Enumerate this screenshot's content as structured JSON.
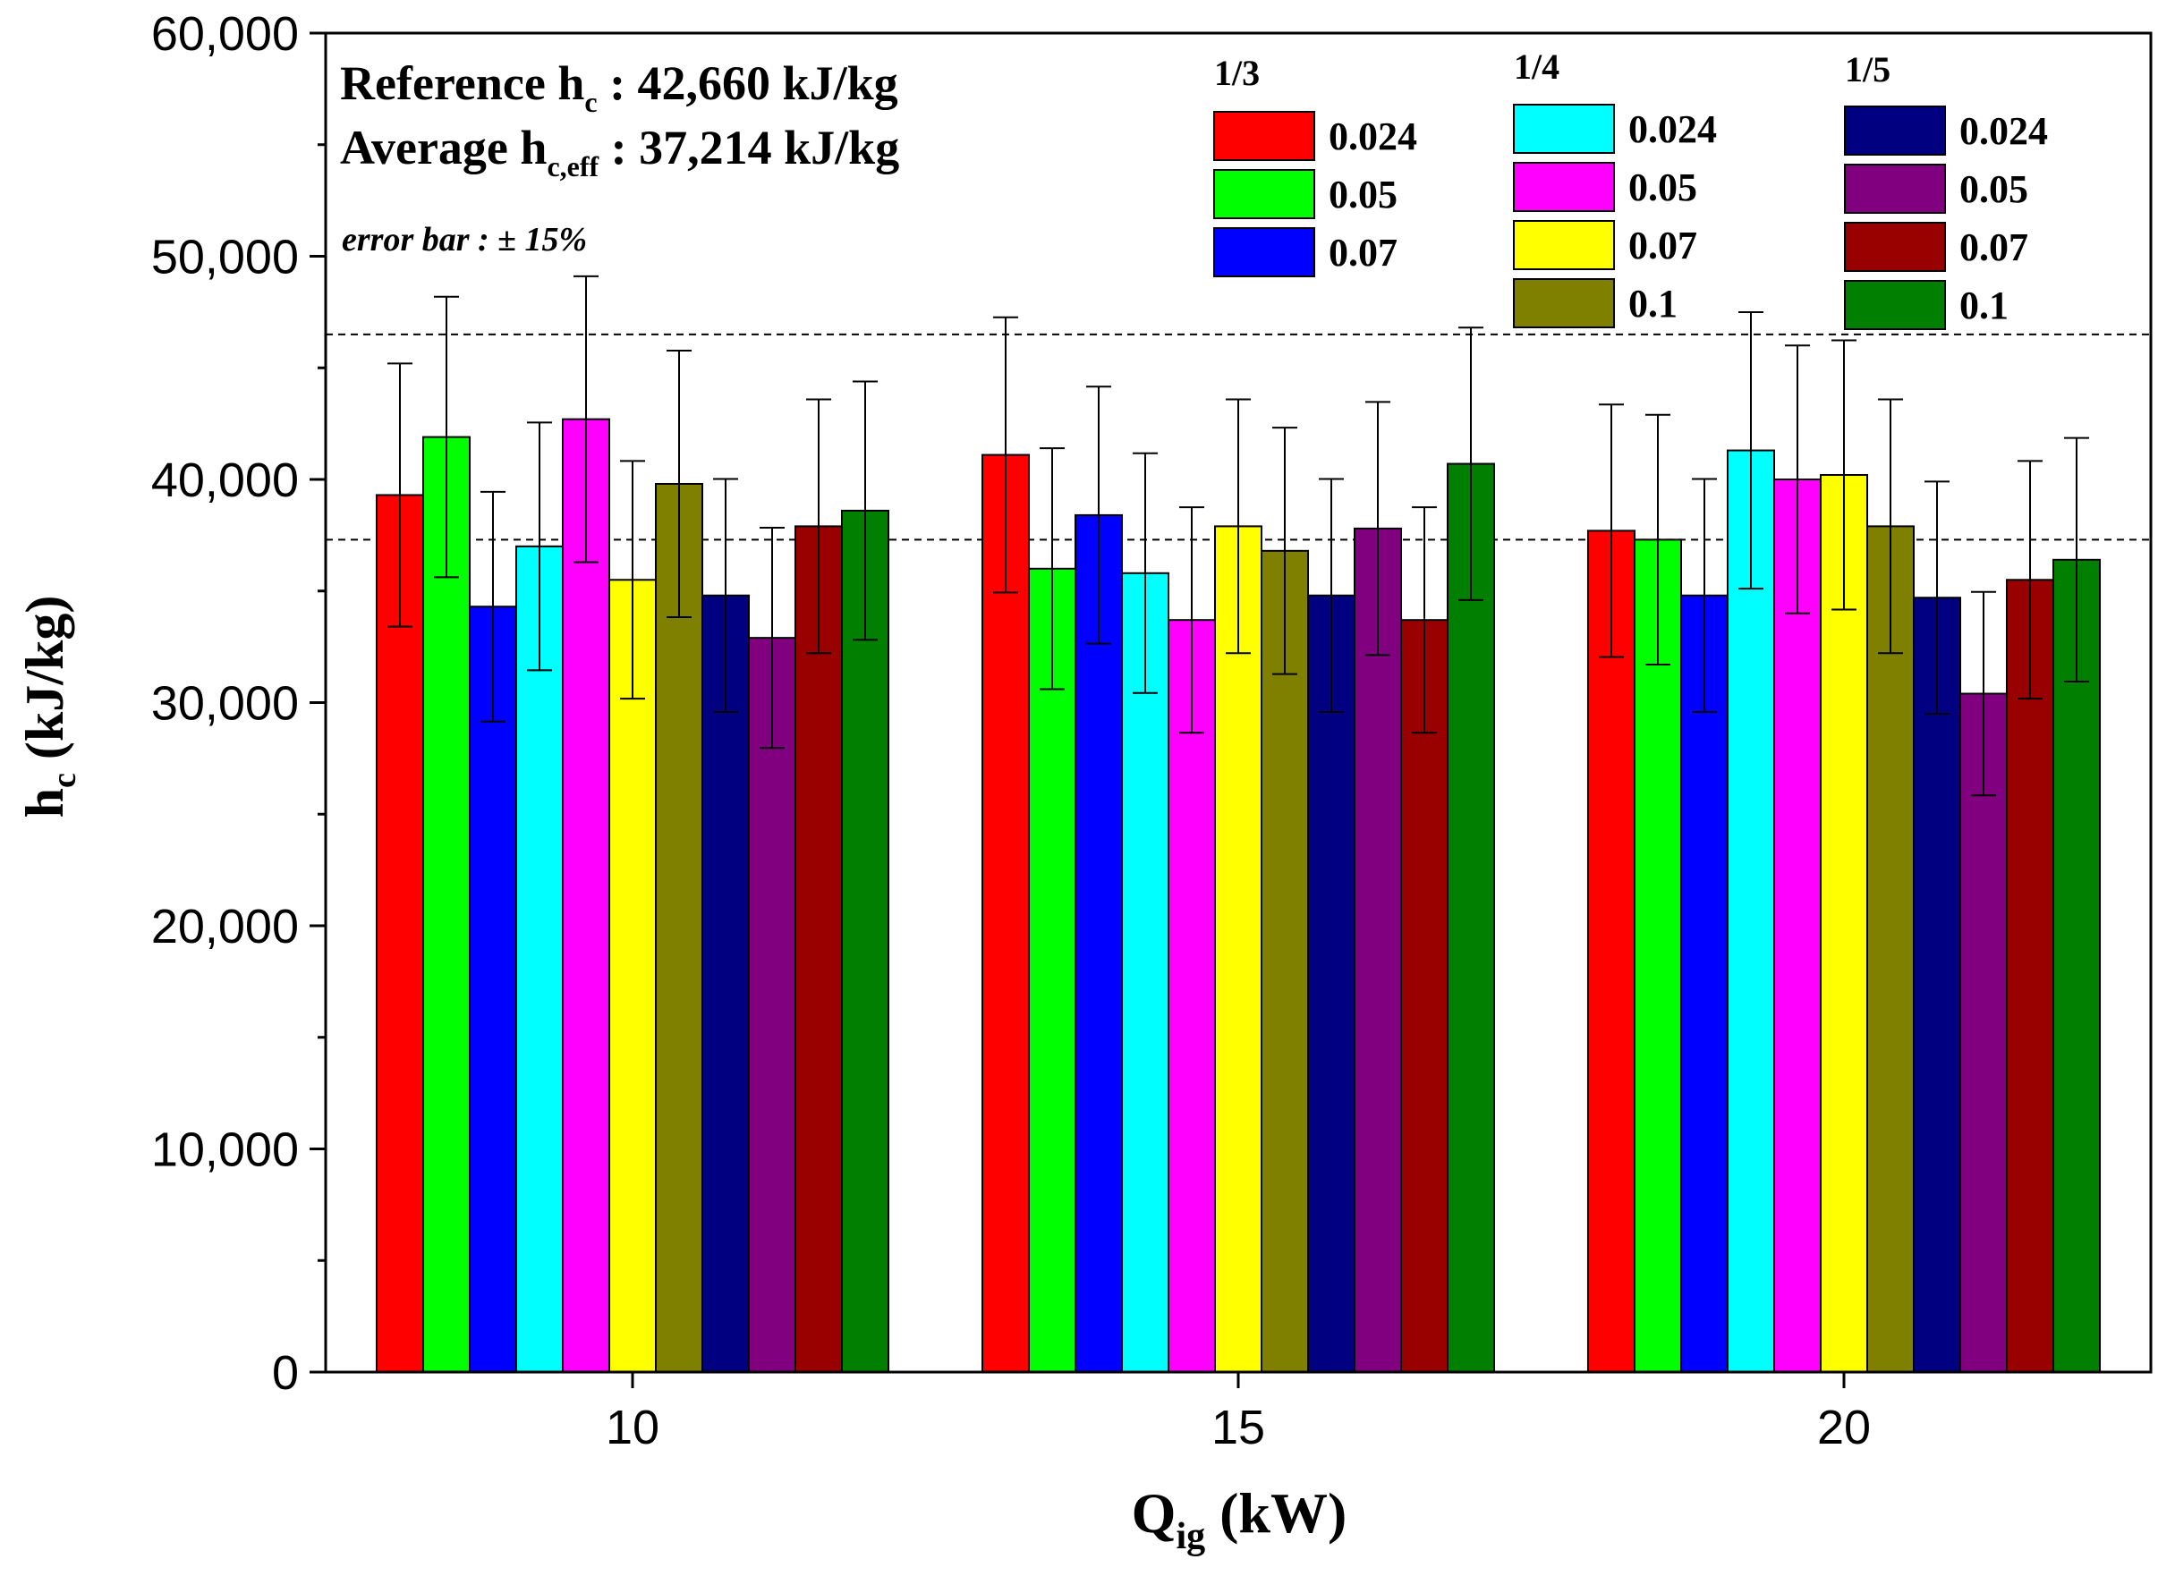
{
  "chart_data": {
    "type": "bar",
    "categories": [
      "10",
      "15",
      "20"
    ],
    "xlabel": {
      "main": "Q",
      "sub": "ig",
      "unit": " (kW)"
    },
    "ylabel": {
      "main": "h",
      "sub": "c",
      "unit": " (kJ/kg)"
    },
    "ylim": [
      0,
      60000
    ],
    "yticks": [
      0,
      10000,
      20000,
      30000,
      40000,
      50000,
      60000
    ],
    "ytick_labels": [
      "0",
      "10,000",
      "20,000",
      "30,000",
      "40,000",
      "50,000",
      "60,000"
    ],
    "error_percent": 15,
    "reference_lines": [
      46500,
      37300
    ],
    "annotations": {
      "reference": {
        "prefix": "Reference h",
        "sub": "c",
        "rest": " : 42,660 kJ/kg"
      },
      "average": {
        "prefix": "Average h",
        "sub": "c,eff",
        "rest": " : 37,214 kJ/kg"
      },
      "error": "error bar : ± 15%"
    },
    "legend_groups": [
      {
        "title": "1/3",
        "series": [
          0,
          1,
          2
        ]
      },
      {
        "title": "1/4",
        "series": [
          3,
          4,
          5,
          6
        ]
      },
      {
        "title": "1/5",
        "series": [
          7,
          8,
          9,
          10
        ]
      }
    ],
    "series": [
      {
        "group": "1/3",
        "name": "0.024",
        "color": "#ff0000",
        "values": [
          39300,
          41100,
          37700
        ]
      },
      {
        "group": "1/3",
        "name": "0.05",
        "color": "#00ff00",
        "values": [
          41900,
          36000,
          37300
        ]
      },
      {
        "group": "1/3",
        "name": "0.07",
        "color": "#0000ff",
        "values": [
          34300,
          38400,
          34800
        ]
      },
      {
        "group": "1/4",
        "name": "0.024",
        "color": "#00ffff",
        "values": [
          37000,
          35800,
          41300
        ]
      },
      {
        "group": "1/4",
        "name": "0.05",
        "color": "#ff00ff",
        "values": [
          42700,
          33700,
          40000
        ]
      },
      {
        "group": "1/4",
        "name": "0.07",
        "color": "#ffff00",
        "values": [
          35500,
          37900,
          40200
        ]
      },
      {
        "group": "1/4",
        "name": "0.1",
        "color": "#808000",
        "values": [
          39800,
          36800,
          37900
        ]
      },
      {
        "group": "1/5",
        "name": "0.024",
        "color": "#000080",
        "values": [
          34800,
          34800,
          34700
        ]
      },
      {
        "group": "1/5",
        "name": "0.05",
        "color": "#800080",
        "values": [
          32900,
          37800,
          30400
        ]
      },
      {
        "group": "1/5",
        "name": "0.07",
        "color": "#990000",
        "values": [
          37900,
          33700,
          35500
        ]
      },
      {
        "group": "1/5",
        "name": "0.1",
        "color": "#007f00",
        "values": [
          38600,
          40700,
          36400
        ]
      }
    ]
  }
}
